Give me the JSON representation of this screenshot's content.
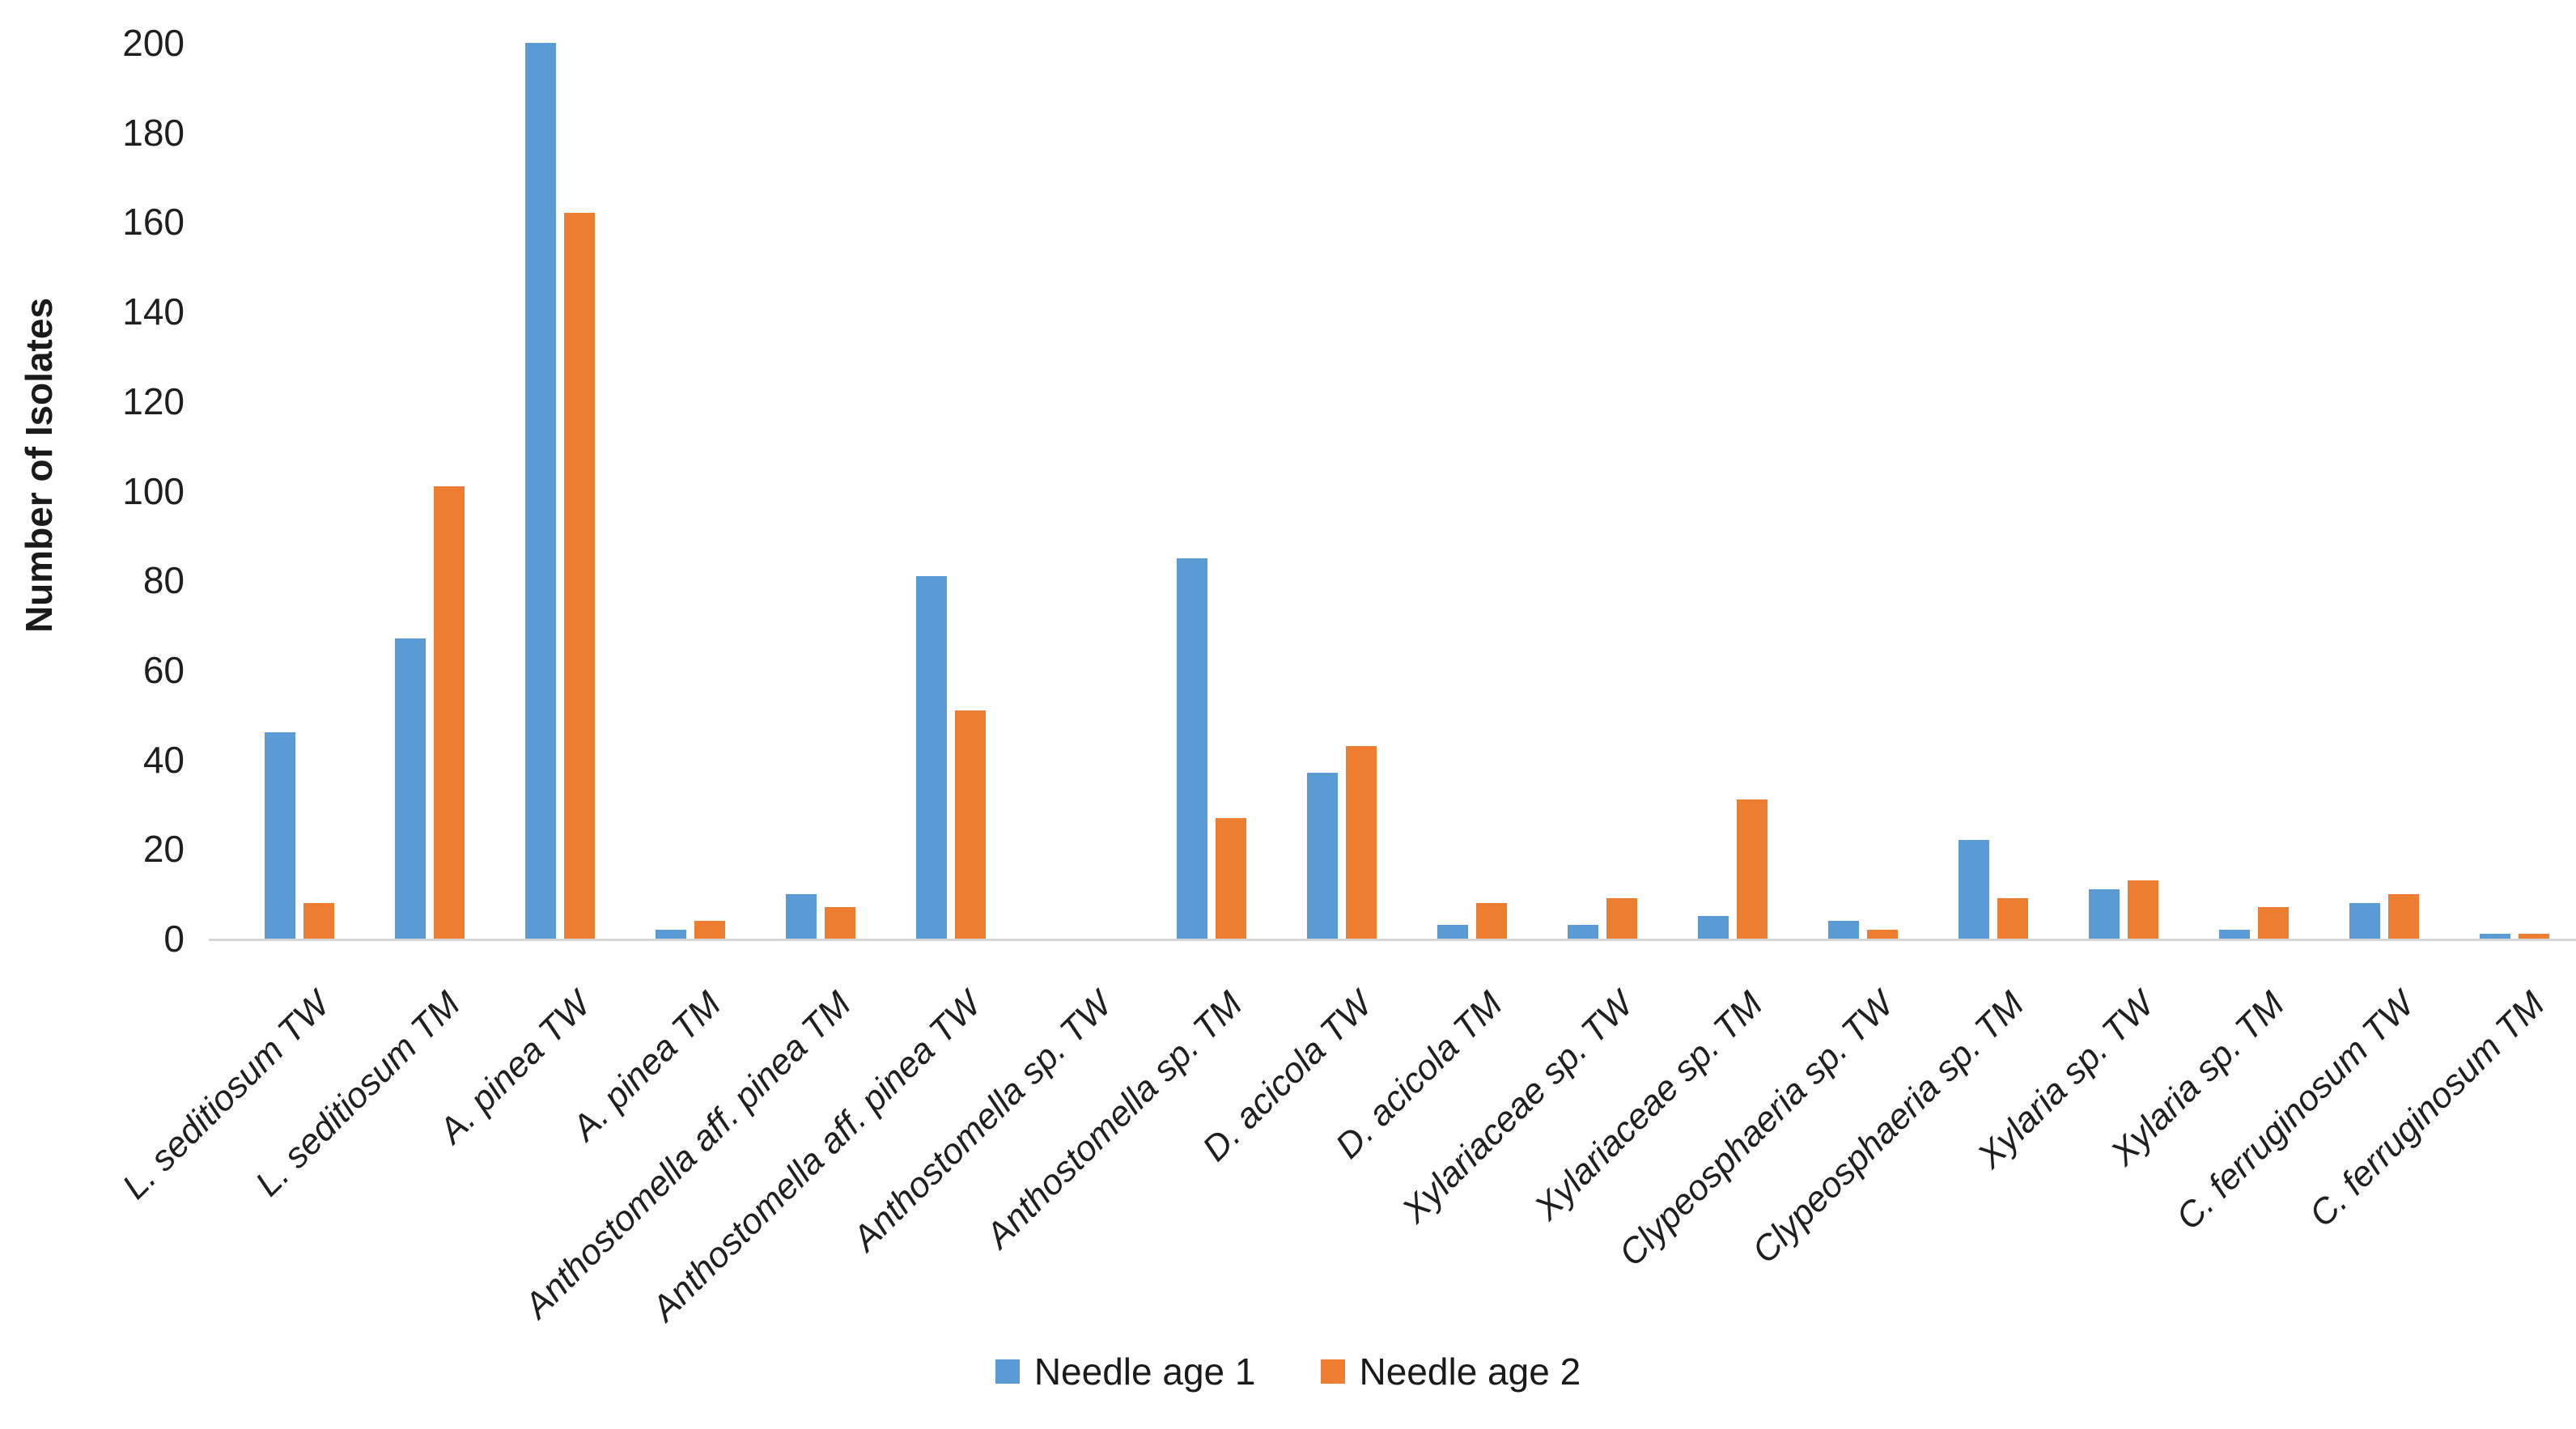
{
  "chart_data": {
    "type": "bar",
    "title": "",
    "xlabel": "",
    "ylabel": "Number of Isolates",
    "ylim": [
      0,
      200
    ],
    "ytick_interval": 20,
    "yticks": [
      0,
      20,
      40,
      60,
      80,
      100,
      120,
      140,
      160,
      180,
      200
    ],
    "grid": false,
    "legend_position": "bottom",
    "bar_orientation": "vertical",
    "categories": [
      "L. seditiosum TW",
      "L. seditiosum TM",
      "A. pinea TW",
      "A. pinea TM",
      "Anthostomella aff. pinea TM",
      "Anthostomella aff. pinea TW",
      "Anthostomella sp. TW",
      "Anthostomella sp. TM",
      "D. acicola TW",
      "D. acicola TM",
      "Xylariaceae sp. TW",
      "Xylariaceae sp. TM",
      "Clypeosphaeria sp. TW",
      "Clypeosphaeria sp. TM",
      "Xylaria sp. TW",
      "Xylaria sp. TM",
      "C. ferruginosum TW",
      "C. ferruginosum TM"
    ],
    "series": [
      {
        "name": "Needle age 1",
        "color": "#5B9BD5",
        "values": [
          46,
          67,
          200,
          2,
          10,
          81,
          0,
          85,
          37,
          3,
          3,
          5,
          4,
          22,
          11,
          2,
          8,
          1
        ]
      },
      {
        "name": "Needle age 2",
        "color": "#ED7D31",
        "values": [
          8,
          101,
          162,
          4,
          7,
          51,
          0,
          27,
          43,
          8,
          9,
          31,
          2,
          9,
          13,
          7,
          10,
          1
        ]
      }
    ],
    "axis_line_color": "#d6d6d6",
    "text_color": "#1f1f1f"
  }
}
